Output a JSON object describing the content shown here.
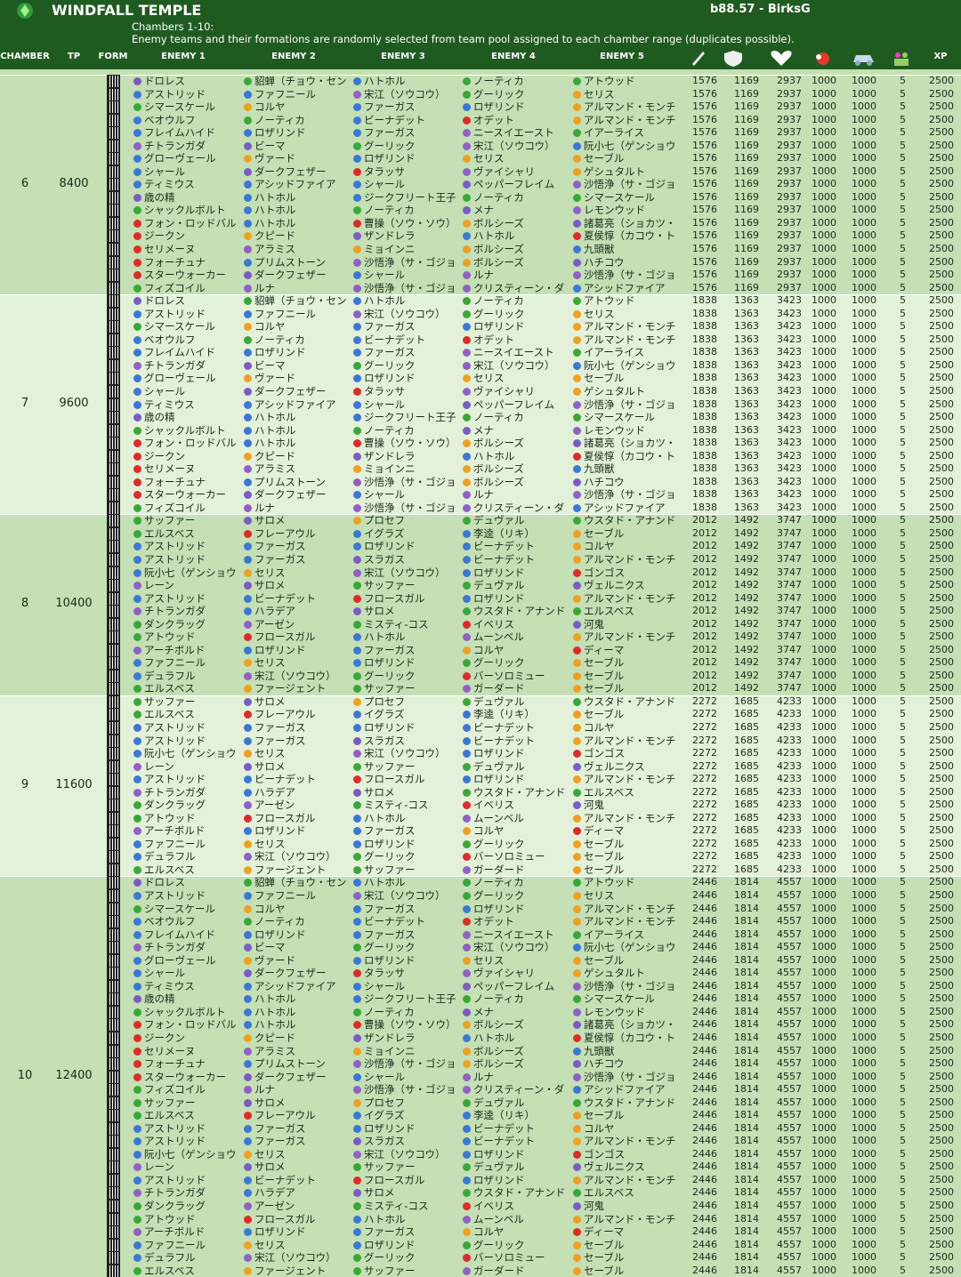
{
  "header": {
    "title": "WINDFALL TEMPLE",
    "version": "b88.57 - BirksG",
    "subtitle": "Chambers 1-10:",
    "note": "Enemy teams and their formations are randomly selected from team pool assigned to each chamber range (duplicates possible)."
  },
  "columns": [
    "CHAMBER",
    "TP",
    "FORM",
    "ENEMY 1",
    "ENEMY 2",
    "ENEMY 3",
    "ENEMY 4",
    "ENEMY 5",
    "XP"
  ],
  "chambers": [
    {
      "chamber": 6,
      "tp": 8400,
      "stats": [
        1576,
        1169,
        2937,
        1000,
        1000,
        5,
        2500
      ],
      "rows": [
        [
          "ドロレス",
          "貂蝉（チョウ・セン",
          "ハトホル",
          "ノーティカ",
          "アトウッド"
        ],
        [
          "アストリッド",
          "ファフニール",
          "宋江（ソウコウ）",
          "グーリック",
          "セリス"
        ],
        [
          "シマースケール",
          "コルヤ",
          "ファーガス",
          "ロザリンド",
          "アルマンド・モンチ"
        ],
        [
          "ベオウルフ",
          "ノーティカ",
          "ビーナデット",
          "オデット",
          "アルマンド・モンチ"
        ],
        [
          "フレイムハイド",
          "ロザリンド",
          "ファーガス",
          "ニースイエースト",
          "イアーライス"
        ],
        [
          "チトランガダ",
          "ビーマ",
          "グーリック",
          "宋江（ソウコウ）",
          "阮小七（ゲンショウ"
        ],
        [
          "グローヴェール",
          "ヴァード",
          "ロザリンド",
          "セリス",
          "セーブル"
        ],
        [
          "シャール",
          "ダークフェザー",
          "タラッサ",
          "ヴァイシャリ",
          "ゲシュタルト"
        ],
        [
          "ティミウス",
          "アシッドファイア",
          "シャール",
          "ペッパーフレイム",
          "沙悟浄（サ・ゴジョ"
        ],
        [
          "歳の精",
          "ハトホル",
          "ジークフリート王子",
          "ノーティカ",
          "シマースケール"
        ],
        [
          "シャックルボルト",
          "ハトホル",
          "ノーティカ",
          "メナ",
          "レモンウッド"
        ],
        [
          "フォン・ロッドバル",
          "ハトホル",
          "曹操（ソウ・ソウ）",
          "ボルシーズ",
          "諸葛亮（ショカツ・"
        ],
        [
          "ジークン",
          "クピード",
          "ザンドレラ",
          "ハトホル",
          "夏侯惇（カコウ・ト"
        ],
        [
          "セリメーヌ",
          "アラミス",
          "ミョインニ",
          "ボルシーズ",
          "九頭獣"
        ],
        [
          "フォーチュナ",
          "プリムストーン",
          "沙悟浄（サ・ゴジョ",
          "ボルシーズ",
          "ハチコウ"
        ],
        [
          "スターウォーカー",
          "ダークフェザー",
          "シャール",
          "ルナ",
          "沙悟浄（サ・ゴジョ"
        ],
        [
          "フィズコイル",
          "ルナ",
          "沙悟浄（サ・ゴジョ",
          "クリスティーン・ダ",
          "アシッドファイア"
        ]
      ]
    },
    {
      "chamber": 7,
      "tp": 9600,
      "stats": [
        1838,
        1363,
        3423,
        1000,
        1000,
        5,
        2500
      ],
      "rows": [
        [
          "ドロレス",
          "貂蝉（チョウ・セン",
          "ハトホル",
          "ノーティカ",
          "アトウッド"
        ],
        [
          "アストリッド",
          "ファフニール",
          "宋江（ソウコウ）",
          "グーリック",
          "セリス"
        ],
        [
          "シマースケール",
          "コルヤ",
          "ファーガス",
          "ロザリンド",
          "アルマンド・モンチ"
        ],
        [
          "ベオウルフ",
          "ノーティカ",
          "ビーナデット",
          "オデット",
          "アルマンド・モンチ"
        ],
        [
          "フレイムハイド",
          "ロザリンド",
          "ファーガス",
          "ニースイエースト",
          "イアーライス"
        ],
        [
          "チトランガダ",
          "ビーマ",
          "グーリック",
          "宋江（ソウコウ）",
          "阮小七（ゲンショウ"
        ],
        [
          "グローヴェール",
          "ヴァード",
          "ロザリンド",
          "セリス",
          "セーブル"
        ],
        [
          "シャール",
          "ダークフェザー",
          "タラッサ",
          "ヴァイシャリ",
          "ゲシュタルト"
        ],
        [
          "ティミウス",
          "アシッドファイア",
          "シャール",
          "ペッパーフレイム",
          "沙悟浄（サ・ゴジョ"
        ],
        [
          "歳の精",
          "ハトホル",
          "ジークフリート王子",
          "ノーティカ",
          "シマースケール"
        ],
        [
          "シャックルボルト",
          "ハトホル",
          "ノーティカ",
          "メナ",
          "レモンウッド"
        ],
        [
          "フォン・ロッドバル",
          "ハトホル",
          "曹操（ソウ・ソウ）",
          "ボルシーズ",
          "諸葛亮（ショカツ・"
        ],
        [
          "ジークン",
          "クピード",
          "ザンドレラ",
          "ハトホル",
          "夏侯惇（カコウ・ト"
        ],
        [
          "セリメーヌ",
          "アラミス",
          "ミョインニ",
          "ボルシーズ",
          "九頭獣"
        ],
        [
          "フォーチュナ",
          "プリムストーン",
          "沙悟浄（サ・ゴジョ",
          "ボルシーズ",
          "ハチコウ"
        ],
        [
          "スターウォーカー",
          "ダークフェザー",
          "シャール",
          "ルナ",
          "沙悟浄（サ・ゴジョ"
        ],
        [
          "フィズコイル",
          "ルナ",
          "沙悟浄（サ・ゴジョ",
          "クリスティーン・ダ",
          "アシッドファイア"
        ]
      ]
    },
    {
      "chamber": 8,
      "tp": 10400,
      "stats": [
        2012,
        1492,
        3747,
        1000,
        1000,
        5,
        2500
      ],
      "rows": [
        [
          "サッファー",
          "サロメ",
          "プロセフ",
          "デュヴァル",
          "ウスタド・アナンド"
        ],
        [
          "エルスベス",
          "フレーアウル",
          "イグラズ",
          "李逵（リキ）",
          "セーブル"
        ],
        [
          "アストリッド",
          "ファーガス",
          "ロザリンド",
          "ビーナデット",
          "コルヤ"
        ],
        [
          "アストリッド",
          "ファーガス",
          "スラガス",
          "ビーナデット",
          "アルマンド・モンチ"
        ],
        [
          "阮小七（ゲンショウ",
          "セリス",
          "宋江（ソウコウ）",
          "ロザリンド",
          "ゴンゴス"
        ],
        [
          "レーン",
          "サロメ",
          "サッファー",
          "デュヴァル",
          "ヴェルニクス"
        ],
        [
          "アストリッド",
          "ビーナデット",
          "フロースガル",
          "ロザリンド",
          "アルマンド・モンチ"
        ],
        [
          "チトランガダ",
          "ハラデア",
          "サロメ",
          "ウスタド・アナンド",
          "エルスベス"
        ],
        [
          "ダンクラッグ",
          "アーゼン",
          "ミスティ-コス",
          "イベリス",
          "河鬼"
        ],
        [
          "アトウッド",
          "フロースガル",
          "ハトホル",
          "ムーンベル",
          "アルマンド・モンチ"
        ],
        [
          "アーチボルド",
          "ロザリンド",
          "ファーガス",
          "コルヤ",
          "ディーマ"
        ],
        [
          "ファフニール",
          "セリス",
          "ロザリンド",
          "グーリック",
          "セーブル"
        ],
        [
          "デュラフル",
          "宋江（ソウコウ）",
          "グーリック",
          "バーソロミュー",
          "セーブル"
        ],
        [
          "エルスベス",
          "ファージェント",
          "サッファー",
          "ガーダード",
          "セーブル"
        ]
      ]
    },
    {
      "chamber": 9,
      "tp": 11600,
      "stats": [
        2272,
        1685,
        4233,
        1000,
        1000,
        5,
        2500
      ],
      "rows": [
        [
          "サッファー",
          "サロメ",
          "プロセフ",
          "デュヴァル",
          "ウスタド・アナンド"
        ],
        [
          "エルスベス",
          "フレーアウル",
          "イグラズ",
          "李逵（リキ）",
          "セーブル"
        ],
        [
          "アストリッド",
          "ファーガス",
          "ロザリンド",
          "ビーナデット",
          "コルヤ"
        ],
        [
          "アストリッド",
          "ファーガス",
          "スラガス",
          "ビーナデット",
          "アルマンド・モンチ"
        ],
        [
          "阮小七（ゲンショウ",
          "セリス",
          "宋江（ソウコウ）",
          "ロザリンド",
          "ゴンゴス"
        ],
        [
          "レーン",
          "サロメ",
          "サッファー",
          "デュヴァル",
          "ヴェルニクス"
        ],
        [
          "アストリッド",
          "ビーナデット",
          "フロースガル",
          "ロザリンド",
          "アルマンド・モンチ"
        ],
        [
          "チトランガダ",
          "ハラデア",
          "サロメ",
          "ウスタド・アナンド",
          "エルスベス"
        ],
        [
          "ダンクラッグ",
          "アーゼン",
          "ミスティ-コス",
          "イベリス",
          "河鬼"
        ],
        [
          "アトウッド",
          "フロースガル",
          "ハトホル",
          "ムーンベル",
          "アルマンド・モンチ"
        ],
        [
          "アーチボルド",
          "ロザリンド",
          "ファーガス",
          "コルヤ",
          "ディーマ"
        ],
        [
          "ファフニール",
          "セリス",
          "ロザリンド",
          "グーリック",
          "セーブル"
        ],
        [
          "デュラフル",
          "宋江（ソウコウ）",
          "グーリック",
          "バーソロミュー",
          "セーブル"
        ],
        [
          "エルスベス",
          "ファージェント",
          "サッファー",
          "ガーダード",
          "セーブル"
        ]
      ]
    },
    {
      "chamber": 10,
      "tp": 12400,
      "stats": [
        2446,
        1814,
        4557,
        1000,
        1000,
        5,
        2500
      ],
      "rows": [
        [
          "ドロレス",
          "貂蝉（チョウ・セン",
          "ハトホル",
          "ノーティカ",
          "アトウッド"
        ],
        [
          "アストリッド",
          "ファフニール",
          "宋江（ソウコウ）",
          "グーリック",
          "セリス"
        ],
        [
          "シマースケール",
          "コルヤ",
          "ファーガス",
          "ロザリンド",
          "アルマンド・モンチ"
        ],
        [
          "ベオウルフ",
          "ノーティカ",
          "ビーナデット",
          "オデット",
          "アルマンド・モンチ"
        ],
        [
          "フレイムハイド",
          "ロザリンド",
          "ファーガス",
          "ニースイエースト",
          "イアーライス"
        ],
        [
          "チトランガダ",
          "ビーマ",
          "グーリック",
          "宋江（ソウコウ）",
          "阮小七（ゲンショウ"
        ],
        [
          "グローヴェール",
          "ヴァード",
          "ロザリンド",
          "セリス",
          "セーブル"
        ],
        [
          "シャール",
          "ダークフェザー",
          "タラッサ",
          "ヴァイシャリ",
          "ゲシュタルト"
        ],
        [
          "ティミウス",
          "アシッドファイア",
          "シャール",
          "ペッパーフレイム",
          "沙悟浄（サ・ゴジョ"
        ],
        [
          "歳の精",
          "ハトホル",
          "ジークフリート王子",
          "ノーティカ",
          "シマースケール"
        ],
        [
          "シャックルボルト",
          "ハトホル",
          "ノーティカ",
          "メナ",
          "レモンウッド"
        ],
        [
          "フォン・ロッドバル",
          "ハトホル",
          "曹操（ソウ・ソウ）",
          "ボルシーズ",
          "諸葛亮（ショカツ・"
        ],
        [
          "ジークン",
          "クピード",
          "ザンドレラ",
          "ハトホル",
          "夏侯惇（カコウ・ト"
        ],
        [
          "セリメーヌ",
          "アラミス",
          "ミョインニ",
          "ボルシーズ",
          "九頭獣"
        ],
        [
          "フォーチュナ",
          "プリムストーン",
          "沙悟浄（サ・ゴジョ",
          "ボルシーズ",
          "ハチコウ"
        ],
        [
          "スターウォーカー",
          "ダークフェザー",
          "シャール",
          "ルナ",
          "沙悟浄（サ・ゴジョ"
        ],
        [
          "フィズコイル",
          "ルナ",
          "沙悟浄（サ・ゴジョ",
          "クリスティーン・ダ",
          "アシッドファイア"
        ],
        [
          "サッファー",
          "サロメ",
          "プロセフ",
          "デュヴァル",
          "ウスタド・アナンド"
        ],
        [
          "エルスベス",
          "フレーアウル",
          "イグラズ",
          "李逵（リキ）",
          "セーブル"
        ],
        [
          "アストリッド",
          "ファーガス",
          "ロザリンド",
          "ビーナデット",
          "コルヤ"
        ],
        [
          "アストリッド",
          "ファーガス",
          "スラガス",
          "ビーナデット",
          "アルマンド・モンチ"
        ],
        [
          "阮小七（ゲンショウ",
          "セリス",
          "宋江（ソウコウ）",
          "ロザリンド",
          "ゴンゴス"
        ],
        [
          "レーン",
          "サロメ",
          "サッファー",
          "デュヴァル",
          "ヴェルニクス"
        ],
        [
          "アストリッド",
          "ビーナデット",
          "フロースガル",
          "ロザリンド",
          "アルマンド・モンチ"
        ],
        [
          "チトランガダ",
          "ハラデア",
          "サロメ",
          "ウスタド・アナンド",
          "エルスベス"
        ],
        [
          "ダンクラッグ",
          "アーゼン",
          "ミスティ-コス",
          "イベリス",
          "河鬼"
        ],
        [
          "アトウッド",
          "フロースガル",
          "ハトホル",
          "ムーンベル",
          "アルマンド・モンチ"
        ],
        [
          "アーチボルド",
          "ロザリンド",
          "ファーガス",
          "コルヤ",
          "ディーマ"
        ],
        [
          "ファフニール",
          "セリス",
          "ロザリンド",
          "グーリック",
          "セーブル"
        ],
        [
          "デュラフル",
          "宋江（ソウコウ）",
          "グーリック",
          "バーソロミュー",
          "セーブル"
        ],
        [
          "エルスベス",
          "ファージェント",
          "サッファー",
          "ガーダード",
          "セーブル"
        ]
      ]
    }
  ]
}
